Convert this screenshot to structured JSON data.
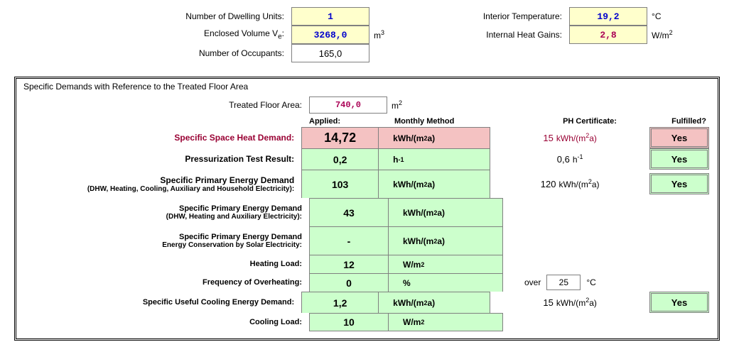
{
  "top": {
    "dwelling_label": "Number of Dwelling Units:",
    "dwelling_value": "1",
    "enclosed_label": "Enclosed Volume V",
    "enclosed_sub": "e",
    "enclosed_value": "3268,0",
    "enclosed_unit": "m",
    "enclosed_unit_sup": "3",
    "occupants_label": "Number of Occupants:",
    "occupants_value": "165,0",
    "interior_label": "Interior Temperature:",
    "interior_value": "19,2",
    "interior_unit": "°C",
    "gains_label": "Internal Heat Gains:",
    "gains_value": "2,8",
    "gains_unit_a": "W/m",
    "gains_unit_sup": "2"
  },
  "panel": {
    "title": "Specific Demands with Reference to the Treated Floor Area",
    "tfa_label": "Treated Floor Area:",
    "tfa_value": "740,0",
    "tfa_unit": "m",
    "tfa_unit_sup": "2",
    "headers": {
      "applied": "Applied:",
      "monthly": "Monthly Method",
      "cert": "PH Certificate:",
      "fulfilled": "Fulfilled?"
    },
    "rows": [
      {
        "label": "Specific Space Heat Demand:",
        "label_red": true,
        "applied": "14,72",
        "applied_highlight": true,
        "bg": "pink",
        "unit_html": "kWh/(m<sup>2</sup>a)",
        "cert_num": "15",
        "cert_unit_html": "kWh/(m<sup>2</sup>a)",
        "cert_red": true,
        "fulfilled": "Yes",
        "fulfilled_bg": "pink"
      },
      {
        "label": "Pressurization Test Result:",
        "applied": "0,2",
        "bg": "green",
        "unit_html": "h<sup>-1</sup>",
        "cert_num": "0,6",
        "cert_unit_html": "h<sup>-1</sup>",
        "fulfilled": "Yes",
        "fulfilled_bg": "green"
      },
      {
        "label": "Specific Primary Energy Demand",
        "sub": "(DHW, Heating, Cooling, Auxiliary and Household Electricity):",
        "tall": true,
        "applied": "103",
        "bg": "green",
        "unit_html": "kWh/(m<sup>2</sup>a)",
        "cert_num": "120",
        "cert_unit_html": "kWh/(m<sup>2</sup>a)",
        "fulfilled": "Yes",
        "fulfilled_bg": "green"
      },
      {
        "label": "Specific Primary Energy Demand",
        "sub": "(DHW, Heating and Auxiliary Electricity):",
        "thin": true,
        "tall": true,
        "applied": "43",
        "bg": "green",
        "unit_html": "kWh/(m<sup>2</sup>a)"
      },
      {
        "label": "Specific Primary Energy Demand",
        "sub": "Energy Conservation by Solar Electricity:",
        "thin": true,
        "tall": true,
        "applied": "-",
        "bg": "green",
        "unit_html": "kWh/(m<sup>2</sup>a)"
      },
      {
        "label": "Heating Load:",
        "thin": true,
        "applied": "12",
        "bg": "green",
        "unit_html": "W/m<sup>2</sup>"
      },
      {
        "label": "Frequency of Overheating:",
        "thin": true,
        "applied": "0",
        "bg": "green",
        "unit_html": "%",
        "over_label": "over",
        "over_value": "25",
        "over_unit": "°C"
      },
      {
        "label": "Specific Useful Cooling Energy Demand:",
        "thin": true,
        "applied": "1,2",
        "bg": "green",
        "unit_html": "kWh/(m<sup>2</sup>a)",
        "cert_num": "15",
        "cert_unit_html": "kWh/(m<sup>2</sup>a)",
        "fulfilled": "Yes",
        "fulfilled_bg": "green"
      },
      {
        "label": "Cooling Load:",
        "thin": true,
        "applied": "10",
        "bg": "green",
        "unit_html": "W/m<sup>2</sup>",
        "last": true
      }
    ]
  }
}
